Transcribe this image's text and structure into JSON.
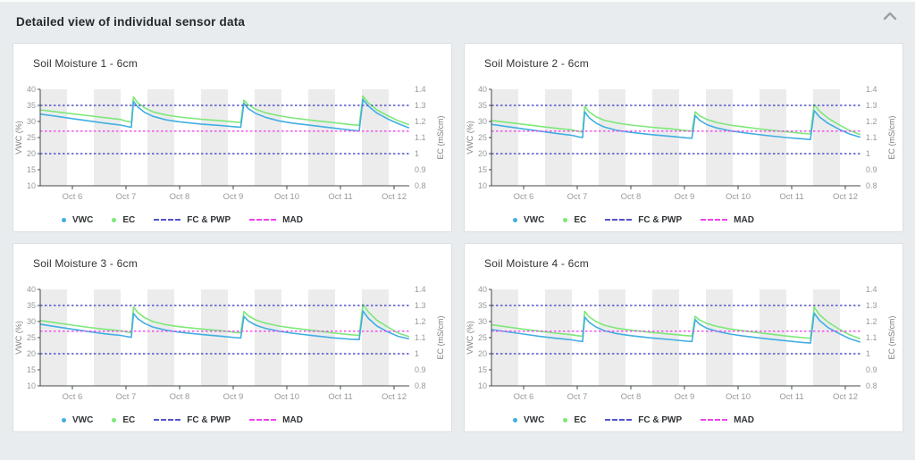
{
  "header": {
    "title": "Detailed view of individual sensor data",
    "collapse_icon": "chevron-up-icon"
  },
  "colors": {
    "vwc": "#41aee3",
    "ec": "#7de878",
    "fc_pwp": "#5352cc",
    "mad": "#ee42ee",
    "band": "#ececec",
    "axis": "#43484b",
    "tick_text": "#96999c",
    "axis_title_text": "#7d8184",
    "panel_bg": "#ffffff",
    "page_bg": "#e9ecee"
  },
  "legend": {
    "items": [
      {
        "id": "vwc",
        "label": "VWC",
        "swatch": "dot",
        "color": "#41aee3"
      },
      {
        "id": "ec",
        "label": "EC",
        "swatch": "dot",
        "color": "#7de878"
      },
      {
        "id": "fc-pwp",
        "label": "FC & PWP",
        "swatch": "dash",
        "color": "#5352cc"
      },
      {
        "id": "mad",
        "label": "MAD",
        "swatch": "dash",
        "color": "#ee42ee"
      }
    ]
  },
  "chart_data": [
    {
      "type": "line",
      "title": "Soil Moisture 1 - 6cm",
      "xlabel": "",
      "ylabel_left": "VWC (%)",
      "ylabel_right": "EC (mS/cm)",
      "ylim_left": [
        10,
        40
      ],
      "ylim_right": [
        0.8,
        1.4
      ],
      "x_tick_labels": [
        "Oct 6",
        "Oct 7",
        "Oct 8",
        "Oct 9",
        "Oct 10",
        "Oct 11",
        "Oct 12"
      ],
      "left_tick_labels": [
        "40",
        "35",
        "30",
        "25",
        "20",
        "15",
        "10"
      ],
      "right_tick_labels": [
        "1.4",
        "1.3",
        "1.2",
        "1.1",
        "1",
        "0.9",
        "0.8"
      ],
      "x_days": [
        -0.6,
        -0.3,
        0,
        0.3,
        0.6,
        0.9,
        1.0,
        1.06,
        1.1,
        1.14,
        1.22,
        1.35,
        1.5,
        1.75,
        2.0,
        2.4,
        2.8,
        3.05,
        3.14,
        3.2,
        3.28,
        3.42,
        3.6,
        3.85,
        4.1,
        4.5,
        4.9,
        5.2,
        5.35,
        5.42,
        5.52,
        5.68,
        5.88,
        6.08,
        6.28
      ],
      "series": [
        {
          "name": "VWC",
          "axis": "left",
          "unit": "%",
          "values": [
            32.3,
            31.6,
            30.9,
            30.2,
            29.5,
            28.9,
            28.5,
            28.3,
            28.2,
            36.3,
            34.5,
            32.8,
            31.6,
            30.5,
            29.9,
            29.2,
            28.7,
            28.3,
            28.2,
            35.7,
            34.0,
            32.5,
            31.3,
            30.2,
            29.5,
            28.7,
            27.9,
            27.3,
            27.0,
            36.9,
            34.8,
            32.6,
            30.8,
            29.3,
            28.0
          ]
        },
        {
          "name": "EC",
          "axis": "right",
          "unit": "mS/cm",
          "values": [
            1.272,
            1.26,
            1.248,
            1.236,
            1.224,
            1.212,
            1.202,
            1.198,
            1.196,
            1.352,
            1.316,
            1.284,
            1.26,
            1.24,
            1.228,
            1.214,
            1.204,
            1.196,
            1.194,
            1.332,
            1.304,
            1.276,
            1.254,
            1.236,
            1.222,
            1.206,
            1.192,
            1.18,
            1.176,
            1.358,
            1.316,
            1.272,
            1.236,
            1.204,
            1.18
          ]
        }
      ],
      "ref_lines": [
        {
          "name": "FC",
          "value": 35,
          "axis": "left",
          "color": "#5352cc"
        },
        {
          "name": "PWP",
          "value": 20,
          "axis": "left",
          "color": "#5352cc"
        },
        {
          "name": "MAD",
          "value": 27,
          "axis": "left",
          "color": "#ee42ee"
        }
      ]
    },
    {
      "type": "line",
      "title": "Soil Moisture 2 - 6cm",
      "xlabel": "",
      "ylabel_left": "VWC (%)",
      "ylabel_right": "EC (mS/cm)",
      "ylim_left": [
        10,
        40
      ],
      "ylim_right": [
        0.8,
        1.4
      ],
      "x_tick_labels": [
        "Oct 6",
        "Oct 7",
        "Oct 8",
        "Oct 9",
        "Oct 10",
        "Oct 11",
        "Oct 12"
      ],
      "left_tick_labels": [
        "40",
        "35",
        "30",
        "25",
        "20",
        "15",
        "10"
      ],
      "right_tick_labels": [
        "1.4",
        "1.3",
        "1.2",
        "1.1",
        "1",
        "0.9",
        "0.8"
      ],
      "x_days": [
        -0.6,
        -0.3,
        0,
        0.3,
        0.6,
        0.9,
        1.0,
        1.06,
        1.1,
        1.14,
        1.22,
        1.35,
        1.5,
        1.75,
        2.0,
        2.4,
        2.8,
        3.05,
        3.14,
        3.2,
        3.28,
        3.42,
        3.6,
        3.85,
        4.1,
        4.5,
        4.9,
        5.2,
        5.35,
        5.42,
        5.52,
        5.68,
        5.88,
        6.08,
        6.28
      ],
      "series": [
        {
          "name": "VWC",
          "axis": "left",
          "unit": "%",
          "values": [
            29.1,
            28.4,
            27.7,
            27.0,
            26.3,
            25.7,
            25.3,
            25.1,
            25.0,
            33.0,
            31.2,
            29.5,
            28.3,
            27.2,
            26.6,
            25.9,
            25.3,
            24.9,
            24.8,
            31.9,
            30.4,
            29.0,
            28.0,
            27.1,
            26.5,
            25.7,
            25.0,
            24.6,
            24.4,
            33.4,
            31.4,
            29.4,
            27.6,
            26.1,
            25.1
          ]
        },
        {
          "name": "EC",
          "axis": "right",
          "unit": "mS/cm",
          "values": [
            1.206,
            1.194,
            1.182,
            1.17,
            1.158,
            1.148,
            1.14,
            1.136,
            1.134,
            1.294,
            1.26,
            1.23,
            1.208,
            1.19,
            1.178,
            1.164,
            1.152,
            1.142,
            1.14,
            1.26,
            1.236,
            1.212,
            1.194,
            1.178,
            1.166,
            1.15,
            1.136,
            1.126,
            1.122,
            1.306,
            1.264,
            1.22,
            1.18,
            1.144,
            1.118
          ]
        }
      ],
      "ref_lines": [
        {
          "name": "FC",
          "value": 35,
          "axis": "left",
          "color": "#5352cc"
        },
        {
          "name": "PWP",
          "value": 20,
          "axis": "left",
          "color": "#5352cc"
        },
        {
          "name": "MAD",
          "value": 27,
          "axis": "left",
          "color": "#ee42ee"
        }
      ]
    },
    {
      "type": "line",
      "title": "Soil Moisture 3 - 6cm",
      "xlabel": "",
      "ylabel_left": "VWC (%)",
      "ylabel_right": "EC (mS/cm)",
      "ylim_left": [
        10,
        40
      ],
      "ylim_right": [
        0.8,
        1.4
      ],
      "x_tick_labels": [
        "Oct 6",
        "Oct 7",
        "Oct 8",
        "Oct 9",
        "Oct 10",
        "Oct 11",
        "Oct 12"
      ],
      "left_tick_labels": [
        "40",
        "35",
        "30",
        "25",
        "20",
        "15",
        "10"
      ],
      "right_tick_labels": [
        "1.4",
        "1.3",
        "1.2",
        "1.1",
        "1",
        "0.9",
        "0.8"
      ],
      "x_days": [
        -0.6,
        -0.3,
        0,
        0.3,
        0.6,
        0.9,
        1.0,
        1.06,
        1.1,
        1.14,
        1.22,
        1.35,
        1.5,
        1.75,
        2.0,
        2.4,
        2.8,
        3.05,
        3.14,
        3.2,
        3.28,
        3.42,
        3.6,
        3.85,
        4.1,
        4.5,
        4.9,
        5.2,
        5.35,
        5.42,
        5.52,
        5.68,
        5.88,
        6.08,
        6.28
      ],
      "series": [
        {
          "name": "VWC",
          "axis": "left",
          "unit": "%",
          "values": [
            29.2,
            28.4,
            27.6,
            26.9,
            26.2,
            25.7,
            25.4,
            25.2,
            25.1,
            32.5,
            30.9,
            29.4,
            28.3,
            27.3,
            26.7,
            26.0,
            25.4,
            25.0,
            24.9,
            31.6,
            30.2,
            28.9,
            27.9,
            27.0,
            26.4,
            25.6,
            24.9,
            24.5,
            24.4,
            33.3,
            31.0,
            28.6,
            26.8,
            25.4,
            24.6
          ]
        },
        {
          "name": "EC",
          "axis": "right",
          "unit": "mS/cm",
          "values": [
            1.206,
            1.192,
            1.178,
            1.164,
            1.152,
            1.142,
            1.136,
            1.132,
            1.13,
            1.29,
            1.256,
            1.224,
            1.2,
            1.18,
            1.168,
            1.154,
            1.142,
            1.132,
            1.13,
            1.262,
            1.236,
            1.21,
            1.19,
            1.172,
            1.16,
            1.144,
            1.128,
            1.118,
            1.114,
            1.308,
            1.26,
            1.208,
            1.166,
            1.128,
            1.106
          ]
        }
      ],
      "ref_lines": [
        {
          "name": "FC",
          "value": 35,
          "axis": "left",
          "color": "#5352cc"
        },
        {
          "name": "PWP",
          "value": 20,
          "axis": "left",
          "color": "#5352cc"
        },
        {
          "name": "MAD",
          "value": 27,
          "axis": "left",
          "color": "#ee42ee"
        }
      ]
    },
    {
      "type": "line",
      "title": "Soil Moisture 4 - 6cm",
      "xlabel": "",
      "ylabel_left": "VWC (%)",
      "ylabel_right": "EC (mS/cm)",
      "ylim_left": [
        10,
        40
      ],
      "ylim_right": [
        0.8,
        1.4
      ],
      "x_tick_labels": [
        "Oct 6",
        "Oct 7",
        "Oct 8",
        "Oct 9",
        "Oct 10",
        "Oct 11",
        "Oct 12"
      ],
      "left_tick_labels": [
        "40",
        "35",
        "30",
        "25",
        "20",
        "15",
        "10"
      ],
      "right_tick_labels": [
        "1.4",
        "1.3",
        "1.2",
        "1.1",
        "1",
        "0.9",
        "0.8"
      ],
      "x_days": [
        -0.6,
        -0.3,
        0,
        0.3,
        0.6,
        0.9,
        1.0,
        1.06,
        1.1,
        1.14,
        1.22,
        1.35,
        1.5,
        1.75,
        2.0,
        2.4,
        2.8,
        3.05,
        3.14,
        3.2,
        3.28,
        3.42,
        3.6,
        3.85,
        4.1,
        4.5,
        4.9,
        5.2,
        5.35,
        5.42,
        5.52,
        5.68,
        5.88,
        6.08,
        6.28
      ],
      "series": [
        {
          "name": "VWC",
          "axis": "left",
          "unit": "%",
          "values": [
            27.5,
            26.8,
            26.1,
            25.4,
            24.8,
            24.3,
            24.0,
            23.9,
            23.8,
            31.4,
            29.8,
            28.3,
            27.2,
            26.2,
            25.6,
            24.9,
            24.3,
            23.9,
            23.8,
            30.6,
            29.2,
            27.9,
            27.0,
            26.1,
            25.5,
            24.7,
            24.0,
            23.5,
            23.3,
            32.6,
            30.3,
            28.1,
            26.3,
            24.7,
            23.6
          ]
        },
        {
          "name": "EC",
          "axis": "right",
          "unit": "mS/cm",
          "values": [
            1.18,
            1.166,
            1.152,
            1.14,
            1.128,
            1.118,
            1.112,
            1.11,
            1.108,
            1.264,
            1.23,
            1.2,
            1.178,
            1.158,
            1.146,
            1.132,
            1.12,
            1.112,
            1.11,
            1.232,
            1.21,
            1.188,
            1.17,
            1.154,
            1.142,
            1.126,
            1.11,
            1.1,
            1.096,
            1.29,
            1.242,
            1.196,
            1.154,
            1.118,
            1.092
          ]
        }
      ],
      "ref_lines": [
        {
          "name": "FC",
          "value": 35,
          "axis": "left",
          "color": "#5352cc"
        },
        {
          "name": "PWP",
          "value": 20,
          "axis": "left",
          "color": "#5352cc"
        },
        {
          "name": "MAD",
          "value": 27,
          "axis": "left",
          "color": "#ee42ee"
        }
      ]
    }
  ]
}
